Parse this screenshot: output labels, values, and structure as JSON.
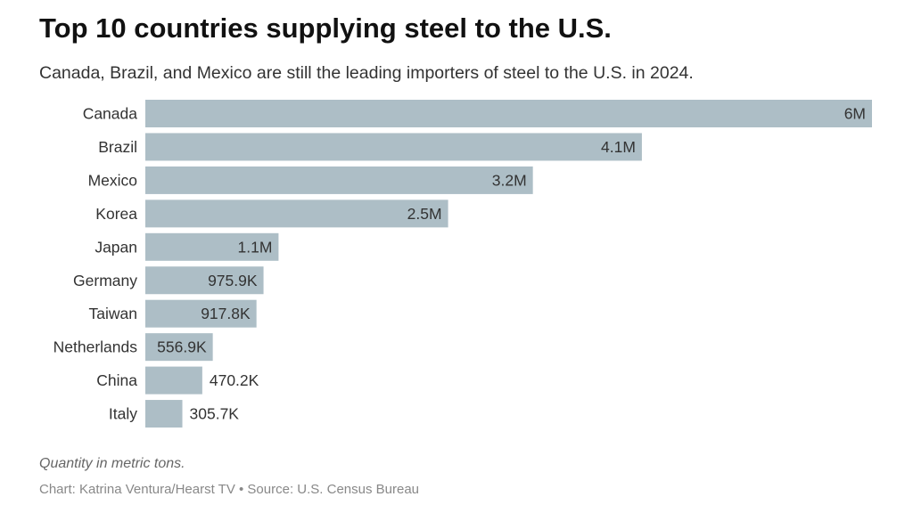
{
  "chart_data": {
    "type": "bar",
    "orientation": "horizontal",
    "title": "Top 10 countries supplying steel to the U.S.",
    "subtitle": "Canada, Brazil, and Mexico are still the leading importers of steel to the U.S. in 2024.",
    "categories": [
      "Canada",
      "Brazil",
      "Mexico",
      "Korea",
      "Japan",
      "Germany",
      "Taiwan",
      "Netherlands",
      "China",
      "Italy"
    ],
    "values": [
      6000000,
      4100000,
      3200000,
      2500000,
      1100000,
      975900,
      917800,
      556900,
      470200,
      305700
    ],
    "data_labels": [
      "6M",
      "4.1M",
      "3.2M",
      "2.5M",
      "1.1M",
      "975.9K",
      "917.8K",
      "556.9K",
      "470.2K",
      "305.7K"
    ],
    "xlim": [
      0,
      6000000
    ],
    "grid": false,
    "bar_color": "#adbec6",
    "note": "Quantity in metric tons.",
    "credit": "Chart: Katrina Ventura/Hearst TV • Source: U.S. Census Bureau"
  }
}
